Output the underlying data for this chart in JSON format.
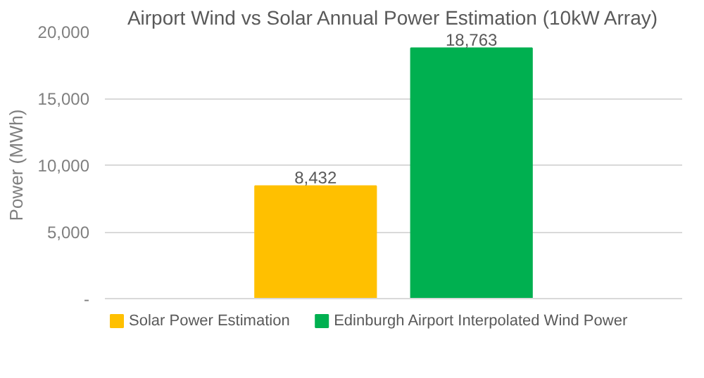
{
  "chart_data": {
    "type": "bar",
    "title": "Airport Wind vs Solar Annual Power Estimation (10kW Array)",
    "ylabel": "Power (MWh)",
    "categories": [
      null
    ],
    "series": [
      {
        "name": "Solar Power Estimation",
        "color": "#ffc000",
        "values": [
          8432
        ],
        "value_labels": [
          "8,432"
        ]
      },
      {
        "name": "Edinburgh Airport Interpolated Wind Power",
        "color": "#00b050",
        "values": [
          18763
        ],
        "value_labels": [
          "18,763"
        ]
      }
    ],
    "ylim": [
      0,
      20000
    ],
    "yticks": [
      {
        "value": 0,
        "label": "-"
      },
      {
        "value": 5000,
        "label": "5,000"
      },
      {
        "value": 10000,
        "label": "10,000"
      },
      {
        "value": 15000,
        "label": "15,000"
      },
      {
        "value": 20000,
        "label": "20,000"
      }
    ],
    "grid": "y",
    "legend": "bottom"
  }
}
